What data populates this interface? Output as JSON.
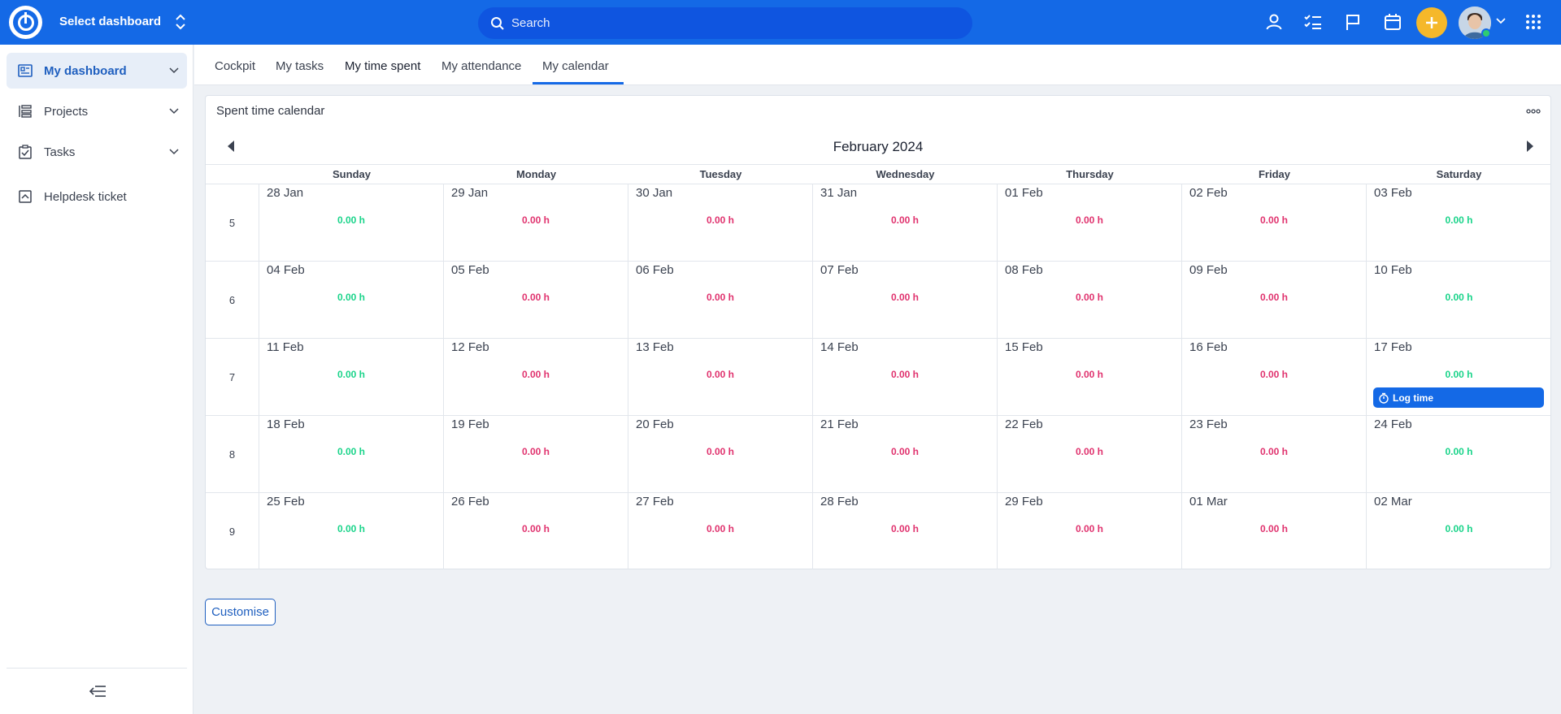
{
  "topbar": {
    "select_dashboard": "Select dashboard",
    "search_placeholder": "Search",
    "icons": [
      "user-icon",
      "checklist-icon",
      "flag-icon",
      "calendar-icon",
      "plus-icon",
      "avatar",
      "apps-grid-icon"
    ]
  },
  "sidebar": {
    "items": [
      {
        "label": "My dashboard",
        "icon": "dashboard-icon",
        "active": true
      },
      {
        "label": "Projects",
        "icon": "projects-icon"
      },
      {
        "label": "Tasks",
        "icon": "tasks-icon"
      },
      {
        "label": "Helpdesk ticket",
        "icon": "helpdesk-icon"
      }
    ]
  },
  "tabs": [
    "Cockpit",
    "My tasks",
    "My time spent",
    "My attendance",
    "My calendar"
  ],
  "active_tab": "My time spent",
  "card": {
    "title": "Spent time calendar",
    "month": "February 2024",
    "weekdays": [
      "Sunday",
      "Monday",
      "Tuesday",
      "Wednesday",
      "Thursday",
      "Friday",
      "Saturday"
    ],
    "weeks": [
      {
        "num": "5",
        "days": [
          {
            "date": "28 Jan",
            "hours": "0.00 h",
            "status": "green"
          },
          {
            "date": "29 Jan",
            "hours": "0.00 h",
            "status": "red"
          },
          {
            "date": "30 Jan",
            "hours": "0.00 h",
            "status": "red"
          },
          {
            "date": "31 Jan",
            "hours": "0.00 h",
            "status": "red"
          },
          {
            "date": "01 Feb",
            "hours": "0.00 h",
            "status": "red"
          },
          {
            "date": "02 Feb",
            "hours": "0.00 h",
            "status": "red"
          },
          {
            "date": "03 Feb",
            "hours": "0.00 h",
            "status": "green"
          }
        ]
      },
      {
        "num": "6",
        "days": [
          {
            "date": "04 Feb",
            "hours": "0.00 h",
            "status": "green"
          },
          {
            "date": "05 Feb",
            "hours": "0.00 h",
            "status": "red"
          },
          {
            "date": "06 Feb",
            "hours": "0.00 h",
            "status": "red"
          },
          {
            "date": "07 Feb",
            "hours": "0.00 h",
            "status": "red"
          },
          {
            "date": "08 Feb",
            "hours": "0.00 h",
            "status": "red"
          },
          {
            "date": "09 Feb",
            "hours": "0.00 h",
            "status": "red"
          },
          {
            "date": "10 Feb",
            "hours": "0.00 h",
            "status": "green"
          }
        ]
      },
      {
        "num": "7",
        "days": [
          {
            "date": "11 Feb",
            "hours": "0.00 h",
            "status": "green"
          },
          {
            "date": "12 Feb",
            "hours": "0.00 h",
            "status": "red"
          },
          {
            "date": "13 Feb",
            "hours": "0.00 h",
            "status": "red"
          },
          {
            "date": "14 Feb",
            "hours": "0.00 h",
            "status": "red"
          },
          {
            "date": "15 Feb",
            "hours": "0.00 h",
            "status": "red"
          },
          {
            "date": "16 Feb",
            "hours": "0.00 h",
            "status": "red"
          },
          {
            "date": "17 Feb",
            "hours": "0.00 h",
            "status": "green",
            "log_time": "Log time"
          }
        ]
      },
      {
        "num": "8",
        "days": [
          {
            "date": "18 Feb",
            "hours": "0.00 h",
            "status": "green"
          },
          {
            "date": "19 Feb",
            "hours": "0.00 h",
            "status": "red"
          },
          {
            "date": "20 Feb",
            "hours": "0.00 h",
            "status": "red"
          },
          {
            "date": "21 Feb",
            "hours": "0.00 h",
            "status": "red"
          },
          {
            "date": "22 Feb",
            "hours": "0.00 h",
            "status": "red"
          },
          {
            "date": "23 Feb",
            "hours": "0.00 h",
            "status": "red"
          },
          {
            "date": "24 Feb",
            "hours": "0.00 h",
            "status": "green"
          }
        ]
      },
      {
        "num": "9",
        "days": [
          {
            "date": "25 Feb",
            "hours": "0.00 h",
            "status": "green"
          },
          {
            "date": "26 Feb",
            "hours": "0.00 h",
            "status": "red"
          },
          {
            "date": "27 Feb",
            "hours": "0.00 h",
            "status": "red"
          },
          {
            "date": "28 Feb",
            "hours": "0.00 h",
            "status": "red"
          },
          {
            "date": "29 Feb",
            "hours": "0.00 h",
            "status": "red"
          },
          {
            "date": "01 Mar",
            "hours": "0.00 h",
            "status": "red"
          },
          {
            "date": "02 Mar",
            "hours": "0.00 h",
            "status": "green"
          }
        ]
      }
    ]
  },
  "customise_label": "Customise",
  "colors": {
    "brand": "#1469e6",
    "accent": "#f5b82a",
    "green": "#1ad48a",
    "red": "#e0326e"
  }
}
